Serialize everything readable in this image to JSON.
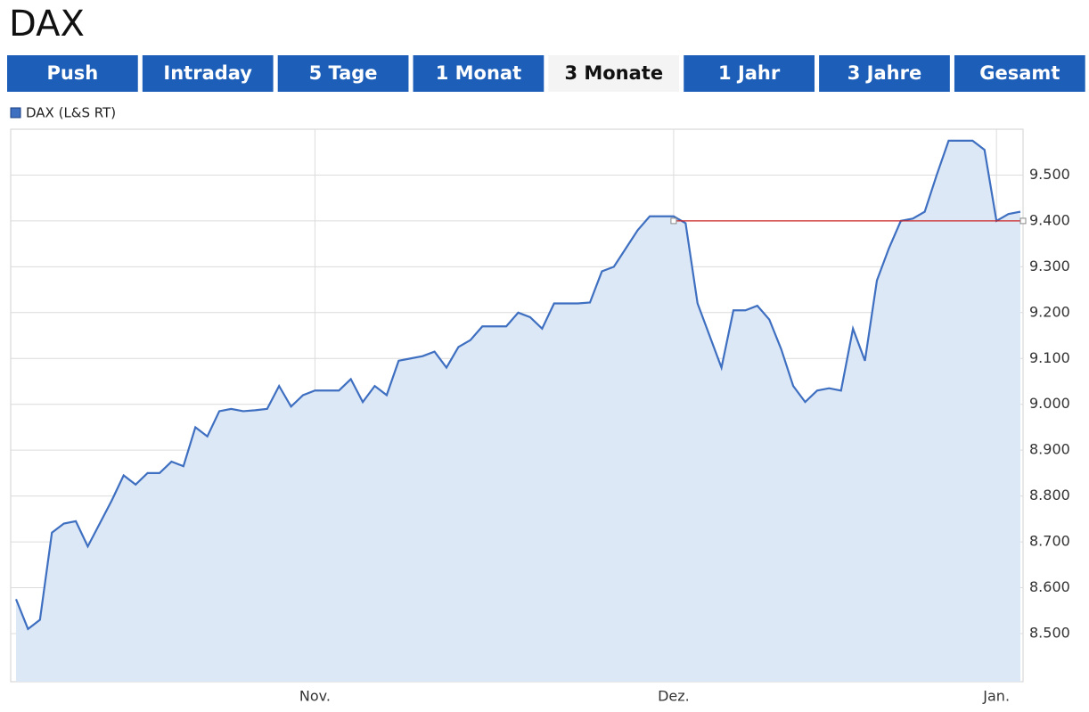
{
  "header": {
    "title": "DAX"
  },
  "tabs": {
    "items": [
      "Push",
      "Intraday",
      "5 Tage",
      "1 Monat",
      "3 Monate",
      "1 Jahr",
      "3 Jahre",
      "Gesamt"
    ],
    "active": 4
  },
  "chart_data": {
    "type": "area",
    "series": [
      {
        "name": "DAX (L&S RT)",
        "color": "#3e6fc0",
        "fill": "#dde8f7",
        "values": [
          8575,
          8510,
          8530,
          8720,
          8740,
          8745,
          8690,
          8740,
          8790,
          8845,
          8825,
          8850,
          8850,
          8875,
          8865,
          8950,
          8930,
          8985,
          8990,
          8985,
          8987,
          8990,
          9040,
          8995,
          9020,
          9030,
          9030,
          9030,
          9055,
          9005,
          9040,
          9020,
          9095,
          9100,
          9105,
          9115,
          9080,
          9125,
          9140,
          9170,
          9170,
          9170,
          9200,
          9190,
          9165,
          9220,
          9220,
          9220,
          9222,
          9290,
          9300,
          9340,
          9380,
          9410,
          9410,
          9410,
          9395,
          9220,
          9150,
          9080,
          9205,
          9205,
          9215,
          9185,
          9120,
          9040,
          9005,
          9030,
          9035,
          9030,
          9165,
          9095,
          9270,
          9340,
          9400,
          9405,
          9420,
          9500,
          9575,
          9575,
          9575,
          9555,
          9400,
          9415,
          9420
        ]
      }
    ],
    "xlim": [
      0,
      84
    ],
    "xticks": [
      {
        "value": 25,
        "label": "Nov."
      },
      {
        "value": 55,
        "label": "Dez."
      },
      {
        "value": 82,
        "label": "Jan."
      }
    ],
    "ylim": [
      8395,
      9600
    ],
    "yticks": [
      {
        "value": 8500,
        "label": "8.500"
      },
      {
        "value": 8600,
        "label": "8.600"
      },
      {
        "value": 8700,
        "label": "8.700"
      },
      {
        "value": 8800,
        "label": "8.800"
      },
      {
        "value": 8900,
        "label": "8.900"
      },
      {
        "value": 9000,
        "label": "9.000"
      },
      {
        "value": 9100,
        "label": "9.100"
      },
      {
        "value": 9200,
        "label": "9.200"
      },
      {
        "value": 9300,
        "label": "9.300"
      },
      {
        "value": 9400,
        "label": "9.400"
      },
      {
        "value": 9500,
        "label": "9.500"
      }
    ],
    "grid": true,
    "reference_line": {
      "value": 9400,
      "from_x": 55,
      "color": "#cc2222"
    }
  }
}
